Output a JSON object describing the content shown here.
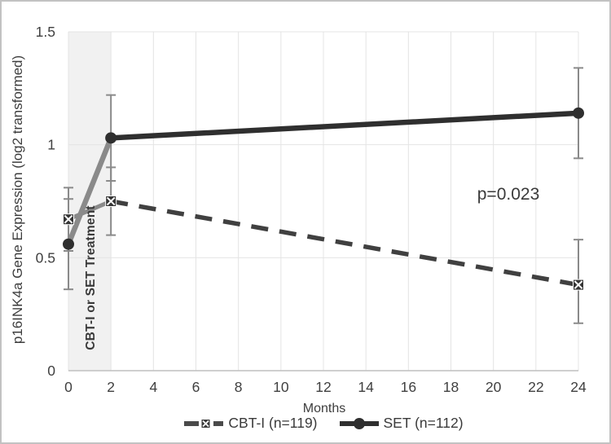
{
  "figure": {
    "colors": {
      "treatment_band": "#f1f1f1",
      "gridline": "#e4e4e4",
      "axis_line": "#bfbfbf",
      "treatment_segment": "#8a8a8a",
      "cbti_line": "#404040",
      "set_line": "#2f2f2f",
      "error_bar": "#8a8a8a",
      "text": "#3d3d3d",
      "frame_border": "#c2c2c2"
    }
  },
  "chart_data": {
    "type": "line",
    "title": "",
    "xlabel": "Months",
    "ylabel": "p16INK4a Gene Expression (log2 transformed)",
    "xlim": [
      0,
      24
    ],
    "ylim": [
      0,
      1.5
    ],
    "x_ticks": [
      0,
      2,
      4,
      6,
      8,
      10,
      12,
      14,
      16,
      18,
      20,
      22,
      24
    ],
    "y_ticks": [
      0,
      0.5,
      1,
      1.5
    ],
    "y_tick_labels": [
      "0",
      "0.5",
      "1",
      "1.5"
    ],
    "grid": true,
    "legend_position": "bottom",
    "treatment_band": {
      "x_start": 0,
      "x_end": 2,
      "label": "CBT-I or SET Treatment"
    },
    "annotation": {
      "text": "p=0.023",
      "x": 20.7,
      "y": 0.78
    },
    "series": [
      {
        "name": "CBT-I (n=119)",
        "marker": "x-square",
        "line_style": "dashed",
        "x": [
          0,
          2,
          24
        ],
        "values": [
          0.67,
          0.75,
          0.38
        ],
        "error_low": [
          0.53,
          0.6,
          0.21
        ],
        "error_high": [
          0.81,
          0.9,
          0.58
        ]
      },
      {
        "name": "SET (n=112)",
        "marker": "circle",
        "line_style": "solid",
        "x": [
          0,
          2,
          24
        ],
        "values": [
          0.56,
          1.03,
          1.14
        ],
        "error_low": [
          0.36,
          0.84,
          0.94
        ],
        "error_high": [
          0.76,
          1.22,
          1.34
        ]
      }
    ]
  }
}
